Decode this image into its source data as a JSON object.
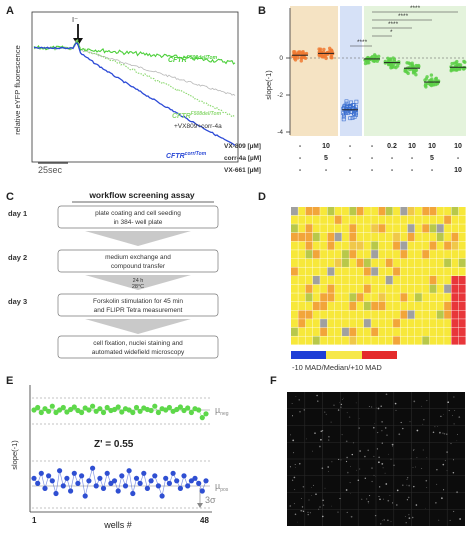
{
  "panels": {
    "A": {
      "letter": "A",
      "ylabel": "relative eYFP fluorescence",
      "stimulus_label": "I⁻",
      "scale_label": "25sec",
      "trace_labels": {
        "f508del_top": "CFTR",
        "f508del_top_sup": "F508del/Tom",
        "f508del_corr": "CFTR",
        "f508del_corr_sup": "F508del/Tom",
        "corr_note": "+VX809+corr-4a",
        "control": "CFTR",
        "control_sup": "corr/Tom"
      },
      "colors": {
        "bright_green": "#4ccf3a",
        "dotted_green": "#8bd86f",
        "blue": "#2b49d6",
        "grey": "#b8b8b8"
      }
    },
    "B": {
      "letter": "B",
      "ylabel": "slope(-1)",
      "yticks": [
        "0",
        "-2",
        "-4"
      ],
      "row_labels": [
        "VX-809 [µM]",
        "corr-4a [µM]",
        "VX-661 [µM]"
      ],
      "table": [
        [
          "-",
          "10",
          "-",
          "-",
          "0.2",
          "10",
          "10",
          "10"
        ],
        [
          "-",
          "5",
          "-",
          "-",
          "-",
          "-",
          "5",
          "-"
        ],
        [
          "-",
          "-",
          "-",
          "-",
          "-",
          "-",
          "-",
          "10"
        ]
      ],
      "significance": [
        "****",
        "****",
        "****",
        "*",
        "****"
      ],
      "colors": {
        "orange": "#f07a32",
        "blue": "#3b6fd0",
        "green": "#5ccf46",
        "band_tan": "#f5e3c3",
        "band_blue": "#d6e1f7",
        "band_green": "#e4f3dc"
      }
    },
    "C": {
      "letter": "C",
      "title": "workflow screening assay",
      "steps": [
        {
          "day": "day 1",
          "text1": "plate coating and cell seeding",
          "text2": "in 384- well plate"
        },
        {
          "day": "day 2",
          "text1": "medium exchange and",
          "text2": "compound transfer"
        },
        {
          "day": "day 3",
          "text1": "Forskolin stimulation for 45 min",
          "text2": "and FLIPR Tetra measurement"
        },
        {
          "day": "",
          "text1": "cell fixation, nuclei staining and",
          "text2": "automated widefield microscopy"
        }
      ],
      "incubation1": "24 h",
      "incubation2": "28°C"
    },
    "D": {
      "letter": "D",
      "legend": "-10 MAD/Median/+10 MAD",
      "colors": {
        "yellow": "#f7e83a",
        "orange": "#f2a53a",
        "red": "#e8363a",
        "green": "#b8c84a",
        "grey": "#a0a0a0",
        "legend_blue": "#1e3ed6",
        "legend_yellow": "#f6e84a",
        "legend_red": "#e42b2b"
      }
    },
    "E": {
      "letter": "E",
      "ylabel": "slope(-1)",
      "xlabel": "wells #",
      "xticks": [
        "1",
        "48"
      ],
      "zfactor": "Z' = 0.55",
      "mu_neg": "µ",
      "mu_neg_sub": "neg",
      "mu_pos": "µ",
      "mu_pos_sub": "pos",
      "sigma": "3σ",
      "colors": {
        "green": "#5ed84a",
        "blue": "#2f4fd2"
      }
    },
    "F": {
      "letter": "F"
    }
  },
  "chart_data": [
    {
      "type": "scatter",
      "panel": "E",
      "xlabel": "wells #",
      "ylabel": "slope(-1)",
      "xlim": [
        1,
        48
      ],
      "series": [
        {
          "values": [
            -0.2,
            -0.1,
            -0.3,
            -0.15,
            -0.25,
            -0.05,
            -0.3,
            -0.2,
            -0.1,
            -0.28,
            -0.18,
            -0.08,
            -0.22,
            -0.3,
            -0.12,
            -0.2,
            -0.05,
            -0.25,
            -0.15,
            -0.3,
            -0.1,
            -0.22,
            -0.18,
            -0.08,
            -0.28,
            -0.15,
            -0.2,
            -0.3,
            -0.1,
            -0.25,
            -0.12,
            -0.18,
            -0.22,
            -0.05,
            -0.3,
            -0.15,
            -0.2,
            -0.1,
            -0.25,
            -0.18,
            -0.08,
            -0.22,
            -0.12,
            -0.3,
            -0.15,
            -0.2,
            -0.5,
            -0.35
          ]
        },
        {
          "values": [
            -2.9,
            -3.1,
            -2.7,
            -3.3,
            -2.8,
            -3.0,
            -3.5,
            -2.6,
            -3.2,
            -2.9,
            -3.4,
            -2.7,
            -3.1,
            -2.8,
            -3.6,
            -3.0,
            -2.5,
            -3.2,
            -2.9,
            -3.3,
            -2.7,
            -3.1,
            -3.0,
            -3.4,
            -2.8,
            -3.2,
            -2.6,
            -3.5,
            -2.9,
            -3.1,
            -2.7,
            -3.3,
            -3.0,
            -2.8,
            -3.2,
            -3.6,
            -2.9,
            -3.1,
            -2.7,
            -3.0,
            -3.3,
            -2.8,
            -3.2,
            -3.0,
            -2.9,
            -3.1,
            -3.4,
            -3.0
          ]
        }
      ]
    }
  ]
}
